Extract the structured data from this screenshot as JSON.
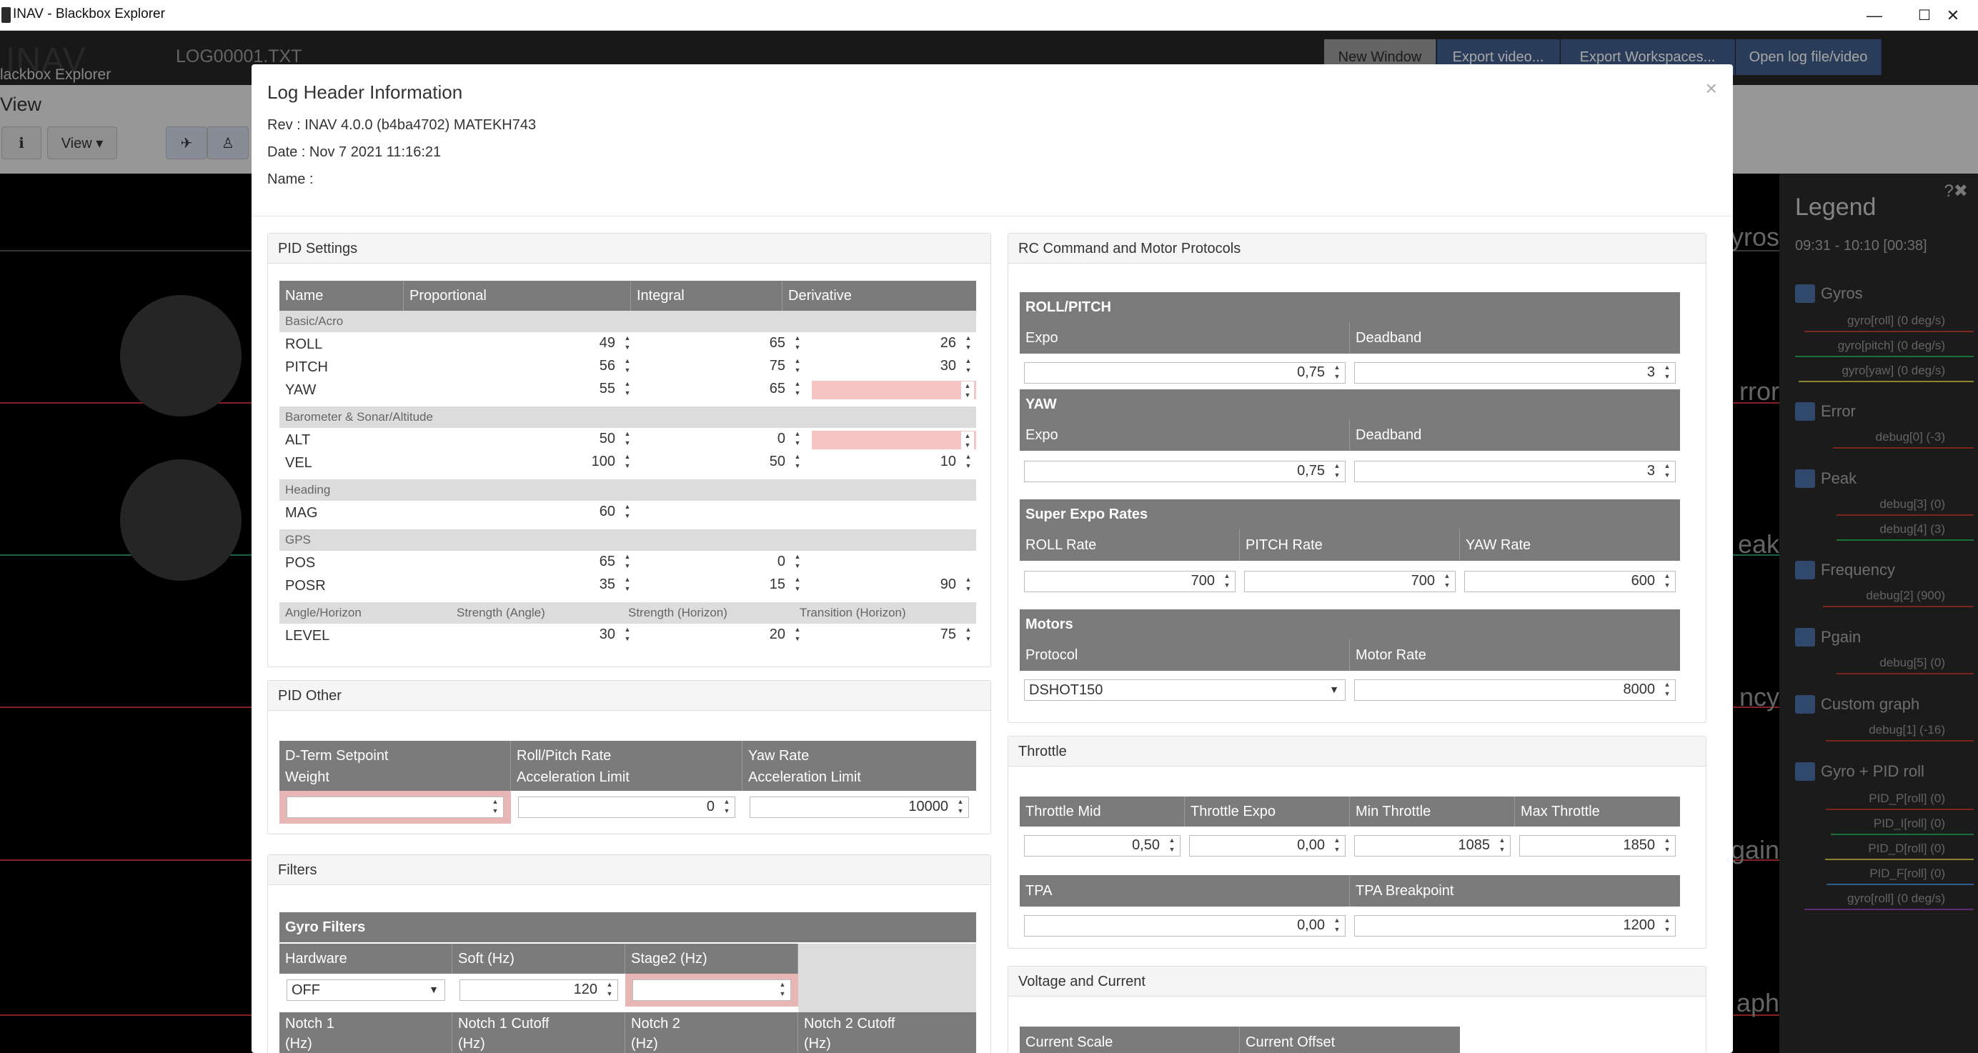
{
  "window": {
    "title": "INAV - Blackbox Explorer",
    "minimize": "—",
    "maximize": "☐",
    "close": "✕"
  },
  "header": {
    "brand": "INAV",
    "brand_sub": "lackbox Explorer",
    "file_name": "LOG00001.TXT",
    "buttons": {
      "new_window": "New Window",
      "export_video": "Export video...",
      "export_workspaces": "Export Workspaces...",
      "open_log": "Open log file/video"
    }
  },
  "toolbar": {
    "view_label": "View",
    "info_icon": "info-icon",
    "view_dropdown": "View ▾"
  },
  "graph_side_labels": {
    "gyros": "yros",
    "error": "rror",
    "peak": "eak",
    "frequency": "ncy",
    "pgain": "gain",
    "graph": "aph"
  },
  "legend": {
    "title": "Legend",
    "time_range": "09:31 - 10:10 [00:38]",
    "groups": [
      {
        "name": "Gyros",
        "items": [
          "gyro[roll] (0 deg/s)",
          "gyro[pitch] (0 deg/s)",
          "gyro[yaw] (0 deg/s)"
        ]
      },
      {
        "name": "Error",
        "items": [
          "debug[0] (-3)"
        ]
      },
      {
        "name": "Peak",
        "items": [
          "debug[3] (0)",
          "debug[4] (3)"
        ]
      },
      {
        "name": "Frequency",
        "items": [
          "debug[2] (900)"
        ]
      },
      {
        "name": "Pgain",
        "items": [
          "debug[5] (0)"
        ]
      },
      {
        "name": "Custom graph",
        "items": [
          "debug[1] (-16)"
        ]
      },
      {
        "name": "Gyro + PID roll",
        "items": [
          "PID_P[roll] (0)",
          "PID_I[roll] (0)",
          "PID_D[roll] (0)",
          "PID_F[roll] (0)",
          "gyro[roll] (0 deg/s)"
        ]
      }
    ]
  },
  "modal": {
    "title": "Log Header Information",
    "close": "×",
    "rev": "Rev : INAV 4.0.0 (b4ba4702) MATEKH743",
    "date": "Date : Nov 7 2021 11:16:21",
    "name": "Name :",
    "pid_settings": {
      "title": "PID Settings",
      "headers": [
        "Name",
        "Proportional",
        "Integral",
        "Derivative"
      ],
      "basic_label": "Basic/Acro",
      "roll": {
        "name": "ROLL",
        "p": "49",
        "i": "65",
        "d": "26"
      },
      "pitch": {
        "name": "PITCH",
        "p": "56",
        "i": "75",
        "d": "30"
      },
      "yaw": {
        "name": "YAW",
        "p": "55",
        "i": "65",
        "d": ""
      },
      "baro_label": "Barometer & Sonar/Altitude",
      "alt": {
        "name": "ALT",
        "p": "50",
        "i": "0",
        "d": ""
      },
      "vel": {
        "name": "VEL",
        "p": "100",
        "i": "50",
        "d": "10"
      },
      "heading_label": "Heading",
      "mag": {
        "name": "MAG",
        "p": "60"
      },
      "gps_label": "GPS",
      "pos": {
        "name": "POS",
        "p": "65",
        "i": "0"
      },
      "posr": {
        "name": "POSR",
        "p": "35",
        "i": "15",
        "d": "90"
      },
      "level_headers": [
        "Angle/Horizon",
        "Strength (Angle)",
        "Strength (Horizon)",
        "Transition (Horizon)"
      ],
      "level": {
        "name": "LEVEL",
        "a": "30",
        "b": "20",
        "c": "75"
      }
    },
    "pid_other": {
      "title": "PID Other",
      "h1a": "D-Term Setpoint",
      "h1b": "Weight",
      "h2a": "Roll/Pitch Rate",
      "h2b": "Acceleration Limit",
      "h3a": "Yaw Rate",
      "h3b": "Acceleration Limit",
      "v1": "",
      "v2": "0",
      "v3": "10000"
    },
    "filters": {
      "title": "Filters",
      "gyro_filters": "Gyro Filters",
      "headers": [
        "Hardware",
        "Soft (Hz)",
        "Stage2 (Hz)"
      ],
      "hardware": "OFF",
      "soft": "120",
      "stage2": "",
      "notch_headers": [
        "Notch 1",
        "Notch 1 Cutoff",
        "Notch 2",
        "Notch 2 Cutoff"
      ],
      "notch_unit": "(Hz)"
    },
    "rc": {
      "title": "RC Command and Motor Protocols",
      "rollpitch": "ROLL/PITCH",
      "expo": "Expo",
      "deadband": "Deadband",
      "rp_expo": "0,75",
      "rp_deadband": "3",
      "yaw": "YAW",
      "yaw_expo": "0,75",
      "yaw_deadband": "3",
      "super_expo": "Super Expo Rates",
      "rate_headers": [
        "ROLL Rate",
        "PITCH Rate",
        "YAW Rate"
      ],
      "roll_rate": "700",
      "pitch_rate": "700",
      "yaw_rate": "600",
      "motors": "Motors",
      "protocol_h": "Protocol",
      "motor_rate_h": "Motor Rate",
      "protocol": "DSHOT150",
      "motor_rate": "8000"
    },
    "throttle": {
      "title": "Throttle",
      "headers": [
        "Throttle Mid",
        "Throttle Expo",
        "Min Throttle",
        "Max Throttle"
      ],
      "mid": "0,50",
      "expo": "0,00",
      "min": "1085",
      "max": "1850",
      "tpa_h": "TPA",
      "tpa_bp_h": "TPA Breakpoint",
      "tpa": "0,00",
      "tpa_bp": "1200"
    },
    "voltage": {
      "title": "Voltage and Current",
      "headers": [
        "Current Scale",
        "Current Offset"
      ]
    }
  }
}
